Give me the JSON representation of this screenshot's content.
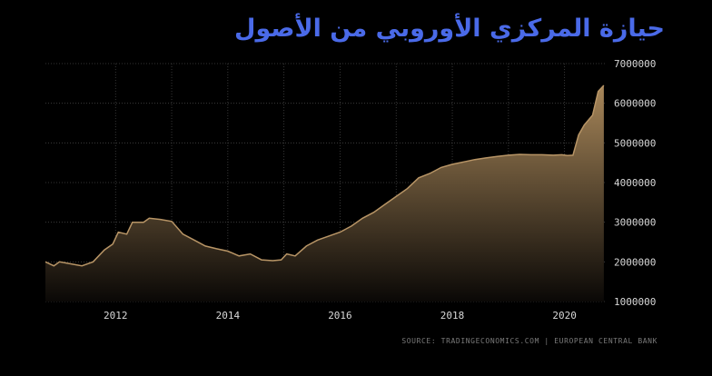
{
  "colors": {
    "background": "#000000",
    "title": "#4a6ae8",
    "area_top": "#a8875a",
    "area_bottom": "#0a0806",
    "line": "#b89566",
    "grid": "#444444",
    "tick_text": "#d8d8d8",
    "source_text": "#7a7a7a"
  },
  "chart_data": {
    "type": "area",
    "title": "حيازة المركزي الأوروبي من الأصول",
    "source": "SOURCE: TRADINGECONOMICS.COM  |  EUROPEAN CENTRAL BANK",
    "xlabel": "",
    "ylabel": "",
    "x_ticks": [
      "2012",
      "2014",
      "2016",
      "2018",
      "2020"
    ],
    "y_ticks": [
      "1000000",
      "2000000",
      "3000000",
      "4000000",
      "5000000",
      "6000000",
      "7000000"
    ],
    "xlim": [
      2010.75,
      2020.75
    ],
    "ylim": [
      1000000,
      7000000
    ],
    "grid": true,
    "y_axis_position": "right",
    "series": [
      {
        "x": [
          2010.75,
          2010.9,
          2011.0,
          2011.2,
          2011.4,
          2011.6,
          2011.8,
          2011.95,
          2012.05,
          2012.2,
          2012.3,
          2012.5,
          2012.6,
          2012.8,
          2013.0,
          2013.2,
          2013.4,
          2013.6,
          2013.8,
          2014.0,
          2014.2,
          2014.4,
          2014.6,
          2014.8,
          2014.95,
          2015.05,
          2015.2,
          2015.4,
          2015.6,
          2015.8,
          2016.0,
          2016.2,
          2016.4,
          2016.6,
          2016.8,
          2017.0,
          2017.2,
          2017.4,
          2017.6,
          2017.8,
          2018.0,
          2018.2,
          2018.4,
          2018.6,
          2018.8,
          2019.0,
          2019.2,
          2019.4,
          2019.6,
          2019.8,
          2019.95,
          2020.05,
          2020.15,
          2020.25,
          2020.35,
          2020.5,
          2020.6,
          2020.7
        ],
        "values": [
          2000000,
          1900000,
          2000000,
          1950000,
          1900000,
          2000000,
          2300000,
          2450000,
          2750000,
          2700000,
          3000000,
          3000000,
          3100000,
          3070000,
          3020000,
          2700000,
          2550000,
          2400000,
          2330000,
          2270000,
          2150000,
          2200000,
          2050000,
          2030000,
          2050000,
          2200000,
          2150000,
          2400000,
          2550000,
          2650000,
          2750000,
          2900000,
          3100000,
          3250000,
          3450000,
          3650000,
          3850000,
          4120000,
          4230000,
          4380000,
          4460000,
          4520000,
          4580000,
          4620000,
          4660000,
          4690000,
          4710000,
          4700000,
          4700000,
          4690000,
          4700000,
          4680000,
          4690000,
          5200000,
          5450000,
          5700000,
          6300000,
          6450000
        ]
      }
    ]
  }
}
